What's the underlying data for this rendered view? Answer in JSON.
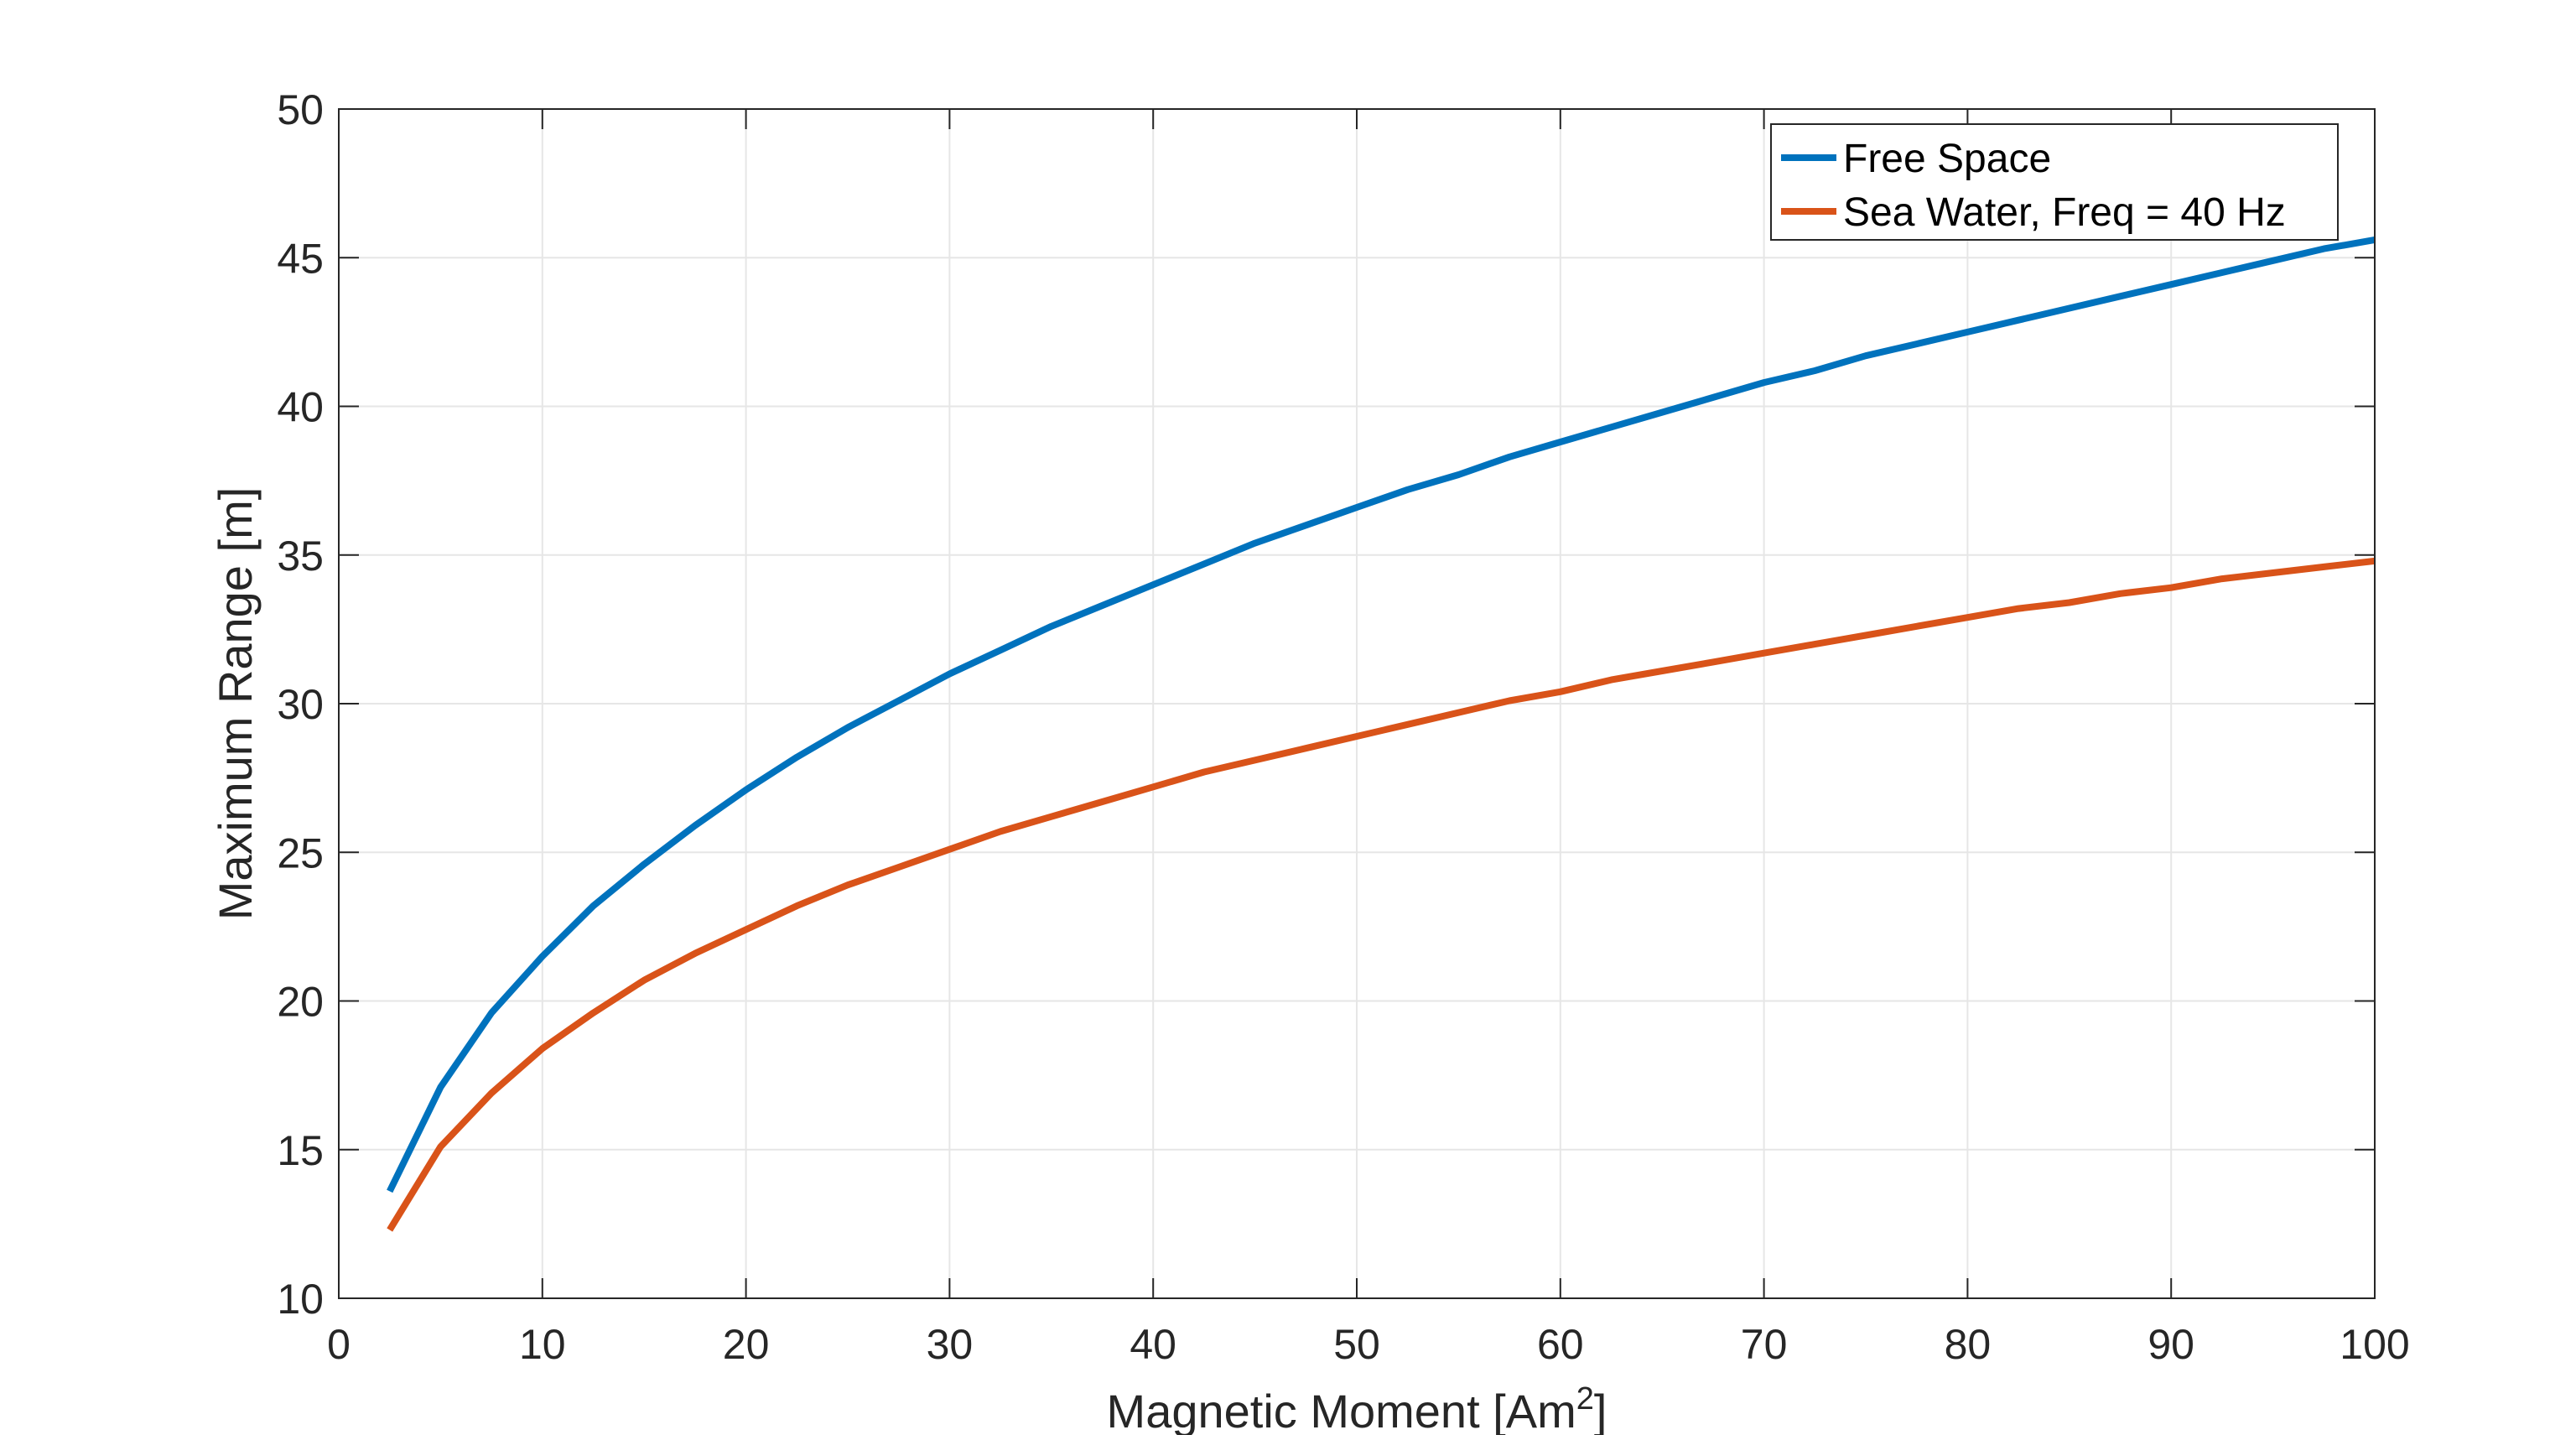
{
  "chart_data": {
    "type": "line",
    "title": "",
    "xlabel": "Magnetic Moment [Am",
    "xlabel_superscript": "2",
    "xlabel_suffix": "]",
    "ylabel": "Maximum Range [m]",
    "xlim": [
      0,
      100
    ],
    "ylim": [
      10,
      50
    ],
    "x_ticks": [
      0,
      10,
      20,
      30,
      40,
      50,
      60,
      70,
      80,
      90,
      100
    ],
    "y_ticks": [
      10,
      15,
      20,
      25,
      30,
      35,
      40,
      45,
      50
    ],
    "grid": true,
    "legend_position": "top-right",
    "x": [
      2.5,
      5,
      7.5,
      10,
      12.5,
      15,
      17.5,
      20,
      22.5,
      25,
      27.5,
      30,
      32.5,
      35,
      37.5,
      40,
      42.5,
      45,
      47.5,
      50,
      52.5,
      55,
      57.5,
      60,
      62.5,
      65,
      67.5,
      70,
      72.5,
      75,
      77.5,
      80,
      82.5,
      85,
      87.5,
      90,
      92.5,
      95,
      97.5,
      100
    ],
    "series": [
      {
        "name": "Free Space",
        "color": "#0072BD",
        "values": [
          13.6,
          17.1,
          19.6,
          21.5,
          23.2,
          24.6,
          25.9,
          27.1,
          28.2,
          29.2,
          30.1,
          31.0,
          31.8,
          32.6,
          33.3,
          34.0,
          34.7,
          35.4,
          36.0,
          36.6,
          37.2,
          37.7,
          38.3,
          38.8,
          39.3,
          39.8,
          40.3,
          40.8,
          41.2,
          41.7,
          42.1,
          42.5,
          42.9,
          43.3,
          43.7,
          44.1,
          44.5,
          44.9,
          45.3,
          45.6
        ]
      },
      {
        "name": "Sea Water, Freq = 40 Hz",
        "color": "#D95319",
        "values": [
          12.3,
          15.1,
          16.9,
          18.4,
          19.6,
          20.7,
          21.6,
          22.4,
          23.2,
          23.9,
          24.5,
          25.1,
          25.7,
          26.2,
          26.7,
          27.2,
          27.7,
          28.1,
          28.5,
          28.9,
          29.3,
          29.7,
          30.1,
          30.4,
          30.8,
          31.1,
          31.4,
          31.7,
          32.0,
          32.3,
          32.6,
          32.9,
          33.2,
          33.4,
          33.7,
          33.9,
          34.2,
          34.4,
          34.6,
          34.8
        ]
      }
    ]
  }
}
